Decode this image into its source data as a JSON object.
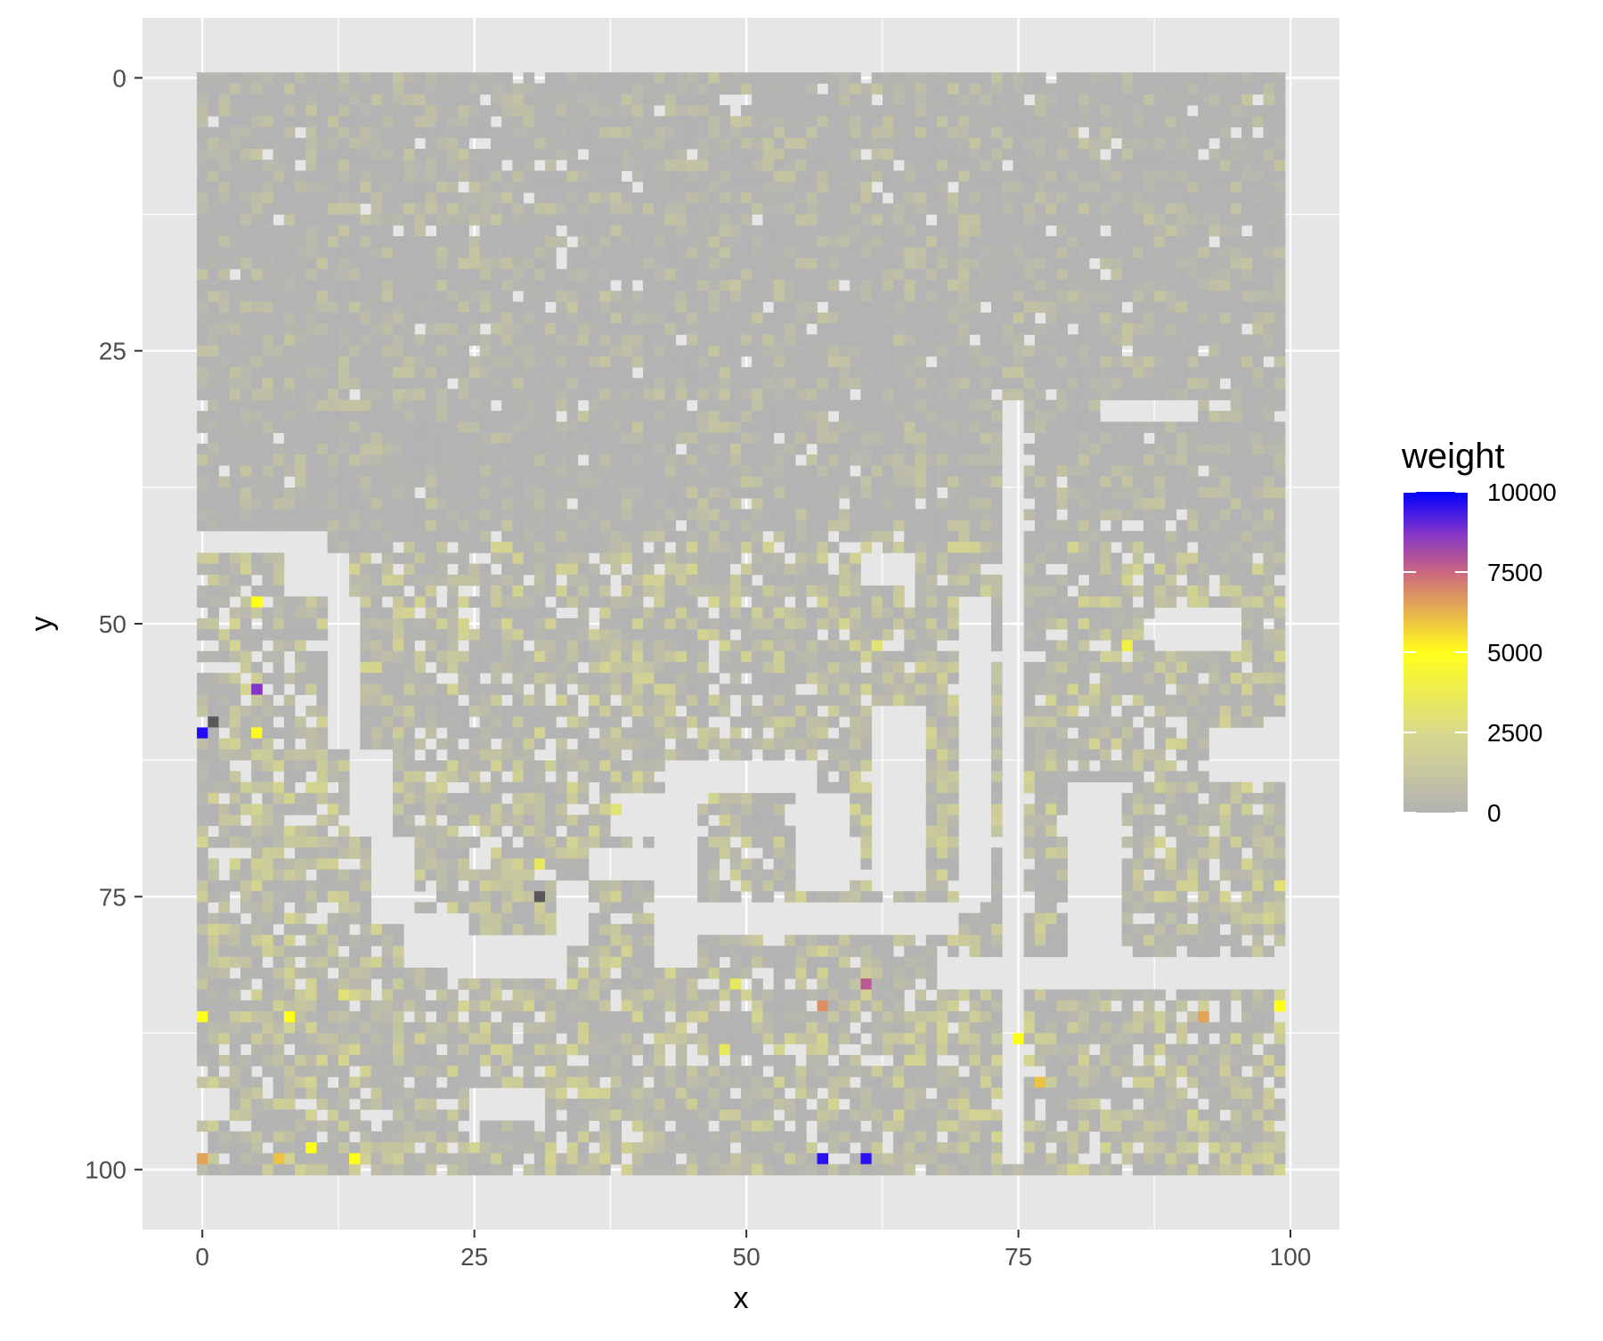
{
  "chart_data": {
    "type": "heatmap",
    "title": "",
    "xlabel": "x",
    "ylabel": "y",
    "xlim": [
      -5.5,
      104.5
    ],
    "ylim": [
      -5.5,
      105.5
    ],
    "y_reversed": true,
    "x_ticks": [
      0,
      25,
      50,
      75,
      100
    ],
    "x_tick_labels": [
      "0",
      "25",
      "50",
      "75",
      "100"
    ],
    "y_ticks": [
      0,
      25,
      50,
      75,
      100
    ],
    "y_tick_labels": [
      "0",
      "25",
      "50",
      "75",
      "100"
    ],
    "grid": true,
    "background_color": "#e6e6e6",
    "grid_color": "#ffffff",
    "grid_size": [
      100,
      101
    ],
    "legend": {
      "title": "weight",
      "position": "right",
      "range": [
        0,
        10000
      ],
      "ticks": [
        0,
        2500,
        5000,
        7500,
        10000
      ],
      "tick_labels": [
        "0",
        "2500",
        "5000",
        "7500",
        "10000"
      ],
      "gradient": [
        {
          "value": 0,
          "color": "#b3b3b3"
        },
        {
          "value": 2500,
          "color": "#d9d98c"
        },
        {
          "value": 5000,
          "color": "#ffff1a"
        },
        {
          "value": 6250,
          "color": "#e6b34d"
        },
        {
          "value": 7500,
          "color": "#cc6680"
        },
        {
          "value": 8750,
          "color": "#8033cc"
        },
        {
          "value": 10000,
          "color": "#0000ff"
        }
      ]
    },
    "missing_color": "#e6e6e6",
    "missing_regions": [
      {
        "x0": 0,
        "x1": 12,
        "y0": 42,
        "y1": 44
      },
      {
        "x0": 8,
        "x1": 14,
        "y0": 44,
        "y1": 48
      },
      {
        "x0": 12,
        "x1": 15,
        "y0": 48,
        "y1": 62
      },
      {
        "x0": 14,
        "x1": 18,
        "y0": 62,
        "y1": 70
      },
      {
        "x0": 16,
        "x1": 20,
        "y0": 70,
        "y1": 78
      },
      {
        "x0": 19,
        "x1": 25,
        "y0": 77,
        "y1": 82
      },
      {
        "x0": 24,
        "x1": 34,
        "y0": 79,
        "y1": 83
      },
      {
        "x0": 33,
        "x1": 36,
        "y0": 74,
        "y1": 80
      },
      {
        "x0": 36,
        "x1": 42,
        "y0": 71,
        "y1": 74
      },
      {
        "x0": 38,
        "x1": 44,
        "y0": 66,
        "y1": 70
      },
      {
        "x0": 43,
        "x1": 57,
        "y0": 63,
        "y1": 66
      },
      {
        "x0": 42,
        "x1": 46,
        "y0": 66,
        "y1": 82
      },
      {
        "x0": 44,
        "x1": 70,
        "y0": 76,
        "y1": 79
      },
      {
        "x0": 68,
        "x1": 100,
        "y0": 81,
        "y1": 84
      },
      {
        "x0": 55,
        "x1": 60,
        "y0": 66,
        "y1": 75
      },
      {
        "x0": 62,
        "x1": 67,
        "y0": 58,
        "y1": 75
      },
      {
        "x0": 70,
        "x1": 73,
        "y0": 48,
        "y1": 76
      },
      {
        "x0": 74,
        "x1": 76,
        "y0": 30,
        "y1": 100
      },
      {
        "x0": 80,
        "x1": 85,
        "y0": 65,
        "y1": 81
      },
      {
        "x0": 88,
        "x1": 96,
        "y0": 49,
        "y1": 53
      },
      {
        "x0": 93,
        "x1": 100,
        "y0": 60,
        "y1": 65
      },
      {
        "x0": 83,
        "x1": 92,
        "y0": 30,
        "y1": 32
      },
      {
        "x0": 61,
        "x1": 66,
        "y0": 44,
        "y1": 47
      },
      {
        "x0": 25,
        "x1": 32,
        "y0": 93,
        "y1": 96
      },
      {
        "x0": 0,
        "x1": 3,
        "y0": 93,
        "y1": 96
      }
    ],
    "highlight_cells": [
      {
        "x": 5,
        "y": 48,
        "value": 5000
      },
      {
        "x": 5,
        "y": 56,
        "value": 8700
      },
      {
        "x": 0,
        "y": 60,
        "value": 9700
      },
      {
        "x": 5,
        "y": 60,
        "value": 4800
      },
      {
        "x": 31,
        "y": 72,
        "value": 3500
      },
      {
        "x": 38,
        "y": 67,
        "value": 3000
      },
      {
        "x": 0,
        "y": 86,
        "value": 5000
      },
      {
        "x": 8,
        "y": 86,
        "value": 5000
      },
      {
        "x": 13,
        "y": 84,
        "value": 3000
      },
      {
        "x": 0,
        "y": 99,
        "value": 6500
      },
      {
        "x": 7,
        "y": 99,
        "value": 6000
      },
      {
        "x": 10,
        "y": 98,
        "value": 5000
      },
      {
        "x": 14,
        "y": 99,
        "value": 5000
      },
      {
        "x": 49,
        "y": 83,
        "value": 3500
      },
      {
        "x": 48,
        "y": 89,
        "value": 3500
      },
      {
        "x": 57,
        "y": 85,
        "value": 6800
      },
      {
        "x": 61,
        "y": 83,
        "value": 7800
      },
      {
        "x": 57,
        "y": 99,
        "value": 9600
      },
      {
        "x": 61,
        "y": 99,
        "value": 9600
      },
      {
        "x": 75,
        "y": 88,
        "value": 5000
      },
      {
        "x": 77,
        "y": 92,
        "value": 6000
      },
      {
        "x": 85,
        "y": 52,
        "value": 4000
      },
      {
        "x": 92,
        "y": 86,
        "value": 6500
      },
      {
        "x": 99,
        "y": 85,
        "value": 5000
      },
      {
        "x": 99,
        "y": 74,
        "value": 3000
      },
      {
        "x": 62,
        "y": 52,
        "value": 3000
      }
    ],
    "dark_cells": [
      {
        "x": 1,
        "y": 59
      },
      {
        "x": 31,
        "y": 75
      }
    ]
  }
}
